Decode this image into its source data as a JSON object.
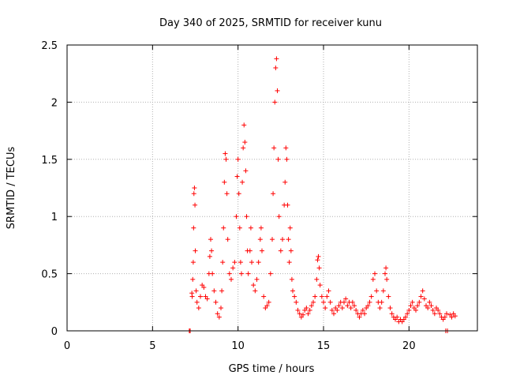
{
  "chart_data": {
    "type": "scatter",
    "title": "Day 340 of 2025, SRMTID for receiver kunu",
    "xlabel": "GPS time / hours",
    "ylabel": "SRMTID / TECUs",
    "xlim": [
      0,
      24
    ],
    "ylim": [
      0,
      2.5
    ],
    "xticks": [
      0,
      5,
      10,
      15,
      20
    ],
    "xtick_labels": [
      "0",
      "5",
      "10",
      "15",
      "20"
    ],
    "yticks": [
      0,
      0.5,
      1,
      1.5,
      2,
      2.5
    ],
    "ytick_labels": [
      "0",
      "0.5",
      "1",
      "1.5",
      "2",
      "2.5"
    ],
    "grid": true,
    "marker": "+",
    "series": [
      {
        "name": "SRMTID",
        "color": "#ff0000",
        "points": [
          [
            7.15,
            0.0
          ],
          [
            7.2,
            0.0
          ],
          [
            22.15,
            0.0
          ],
          [
            22.25,
            0.0
          ],
          [
            7.3,
            0.33
          ],
          [
            7.32,
            0.3
          ],
          [
            7.35,
            0.45
          ],
          [
            7.38,
            0.6
          ],
          [
            7.4,
            0.9
          ],
          [
            7.42,
            1.2
          ],
          [
            7.45,
            1.25
          ],
          [
            7.48,
            1.1
          ],
          [
            7.5,
            0.7
          ],
          [
            7.55,
            0.35
          ],
          [
            7.6,
            0.25
          ],
          [
            7.7,
            0.2
          ],
          [
            7.8,
            0.3
          ],
          [
            7.9,
            0.4
          ],
          [
            8.0,
            0.38
          ],
          [
            8.1,
            0.3
          ],
          [
            8.2,
            0.28
          ],
          [
            8.3,
            0.5
          ],
          [
            8.35,
            0.65
          ],
          [
            8.4,
            0.8
          ],
          [
            8.45,
            0.7
          ],
          [
            8.5,
            0.5
          ],
          [
            8.6,
            0.35
          ],
          [
            8.7,
            0.25
          ],
          [
            8.8,
            0.15
          ],
          [
            8.9,
            0.12
          ],
          [
            9.0,
            0.2
          ],
          [
            9.05,
            0.35
          ],
          [
            9.1,
            0.6
          ],
          [
            9.15,
            0.9
          ],
          [
            9.2,
            1.3
          ],
          [
            9.25,
            1.55
          ],
          [
            9.3,
            1.5
          ],
          [
            9.35,
            1.2
          ],
          [
            9.4,
            0.8
          ],
          [
            9.5,
            0.5
          ],
          [
            9.6,
            0.45
          ],
          [
            9.7,
            0.55
          ],
          [
            9.8,
            0.6
          ],
          [
            9.9,
            1.0
          ],
          [
            9.95,
            1.35
          ],
          [
            10.0,
            1.5
          ],
          [
            10.05,
            1.2
          ],
          [
            10.1,
            0.9
          ],
          [
            10.15,
            0.6
          ],
          [
            10.2,
            0.5
          ],
          [
            10.25,
            1.3
          ],
          [
            10.3,
            1.6
          ],
          [
            10.35,
            1.8
          ],
          [
            10.4,
            1.65
          ],
          [
            10.45,
            1.4
          ],
          [
            10.5,
            1.0
          ],
          [
            10.55,
            0.7
          ],
          [
            10.6,
            0.5
          ],
          [
            10.7,
            0.7
          ],
          [
            10.75,
            0.9
          ],
          [
            10.8,
            0.6
          ],
          [
            10.9,
            0.4
          ],
          [
            11.0,
            0.35
          ],
          [
            11.1,
            0.45
          ],
          [
            11.2,
            0.6
          ],
          [
            11.3,
            0.8
          ],
          [
            11.35,
            0.9
          ],
          [
            11.4,
            0.7
          ],
          [
            11.5,
            0.3
          ],
          [
            11.6,
            0.2
          ],
          [
            11.7,
            0.22
          ],
          [
            11.8,
            0.25
          ],
          [
            11.9,
            0.5
          ],
          [
            12.0,
            0.8
          ],
          [
            12.05,
            1.2
          ],
          [
            12.1,
            1.6
          ],
          [
            12.15,
            2.0
          ],
          [
            12.2,
            2.3
          ],
          [
            12.25,
            2.38
          ],
          [
            12.3,
            2.1
          ],
          [
            12.35,
            1.5
          ],
          [
            12.4,
            1.0
          ],
          [
            12.5,
            0.7
          ],
          [
            12.6,
            0.8
          ],
          [
            12.7,
            1.1
          ],
          [
            12.75,
            1.3
          ],
          [
            12.8,
            1.6
          ],
          [
            12.85,
            1.5
          ],
          [
            12.9,
            1.1
          ],
          [
            12.95,
            0.8
          ],
          [
            13.0,
            0.6
          ],
          [
            13.05,
            0.9
          ],
          [
            13.1,
            0.7
          ],
          [
            13.15,
            0.45
          ],
          [
            13.2,
            0.35
          ],
          [
            13.3,
            0.3
          ],
          [
            13.4,
            0.25
          ],
          [
            13.5,
            0.18
          ],
          [
            13.6,
            0.15
          ],
          [
            13.7,
            0.12
          ],
          [
            13.8,
            0.14
          ],
          [
            13.9,
            0.18
          ],
          [
            14.0,
            0.2
          ],
          [
            14.1,
            0.15
          ],
          [
            14.2,
            0.18
          ],
          [
            14.3,
            0.22
          ],
          [
            14.4,
            0.25
          ],
          [
            14.5,
            0.3
          ],
          [
            14.6,
            0.45
          ],
          [
            14.65,
            0.62
          ],
          [
            14.7,
            0.65
          ],
          [
            14.75,
            0.55
          ],
          [
            14.8,
            0.4
          ],
          [
            14.9,
            0.3
          ],
          [
            15.0,
            0.25
          ],
          [
            15.1,
            0.2
          ],
          [
            15.2,
            0.3
          ],
          [
            15.3,
            0.35
          ],
          [
            15.4,
            0.25
          ],
          [
            15.5,
            0.18
          ],
          [
            15.6,
            0.15
          ],
          [
            15.7,
            0.2
          ],
          [
            15.8,
            0.18
          ],
          [
            15.9,
            0.22
          ],
          [
            16.0,
            0.25
          ],
          [
            16.1,
            0.2
          ],
          [
            16.2,
            0.25
          ],
          [
            16.3,
            0.28
          ],
          [
            16.4,
            0.22
          ],
          [
            16.5,
            0.25
          ],
          [
            16.6,
            0.2
          ],
          [
            16.7,
            0.25
          ],
          [
            16.8,
            0.22
          ],
          [
            16.9,
            0.18
          ],
          [
            17.0,
            0.15
          ],
          [
            17.1,
            0.12
          ],
          [
            17.2,
            0.15
          ],
          [
            17.3,
            0.18
          ],
          [
            17.4,
            0.15
          ],
          [
            17.5,
            0.2
          ],
          [
            17.6,
            0.22
          ],
          [
            17.7,
            0.25
          ],
          [
            17.8,
            0.3
          ],
          [
            17.9,
            0.45
          ],
          [
            18.0,
            0.5
          ],
          [
            18.1,
            0.35
          ],
          [
            18.2,
            0.25
          ],
          [
            18.3,
            0.2
          ],
          [
            18.4,
            0.25
          ],
          [
            18.5,
            0.35
          ],
          [
            18.6,
            0.5
          ],
          [
            18.65,
            0.55
          ],
          [
            18.7,
            0.45
          ],
          [
            18.8,
            0.3
          ],
          [
            18.9,
            0.2
          ],
          [
            19.0,
            0.15
          ],
          [
            19.1,
            0.12
          ],
          [
            19.2,
            0.1
          ],
          [
            19.3,
            0.12
          ],
          [
            19.4,
            0.08
          ],
          [
            19.5,
            0.1
          ],
          [
            19.6,
            0.08
          ],
          [
            19.7,
            0.1
          ],
          [
            19.8,
            0.12
          ],
          [
            19.9,
            0.15
          ],
          [
            20.0,
            0.18
          ],
          [
            20.1,
            0.22
          ],
          [
            20.2,
            0.25
          ],
          [
            20.3,
            0.2
          ],
          [
            20.4,
            0.18
          ],
          [
            20.5,
            0.22
          ],
          [
            20.6,
            0.25
          ],
          [
            20.7,
            0.3
          ],
          [
            20.8,
            0.35
          ],
          [
            20.9,
            0.28
          ],
          [
            21.0,
            0.22
          ],
          [
            21.1,
            0.2
          ],
          [
            21.2,
            0.25
          ],
          [
            21.3,
            0.22
          ],
          [
            21.4,
            0.18
          ],
          [
            21.5,
            0.15
          ],
          [
            21.6,
            0.2
          ],
          [
            21.7,
            0.18
          ],
          [
            21.8,
            0.15
          ],
          [
            21.9,
            0.12
          ],
          [
            22.0,
            0.1
          ],
          [
            22.1,
            0.12
          ],
          [
            22.2,
            0.15
          ],
          [
            22.4,
            0.14
          ],
          [
            22.5,
            0.12
          ],
          [
            22.6,
            0.15
          ],
          [
            22.7,
            0.13
          ]
        ]
      }
    ]
  }
}
